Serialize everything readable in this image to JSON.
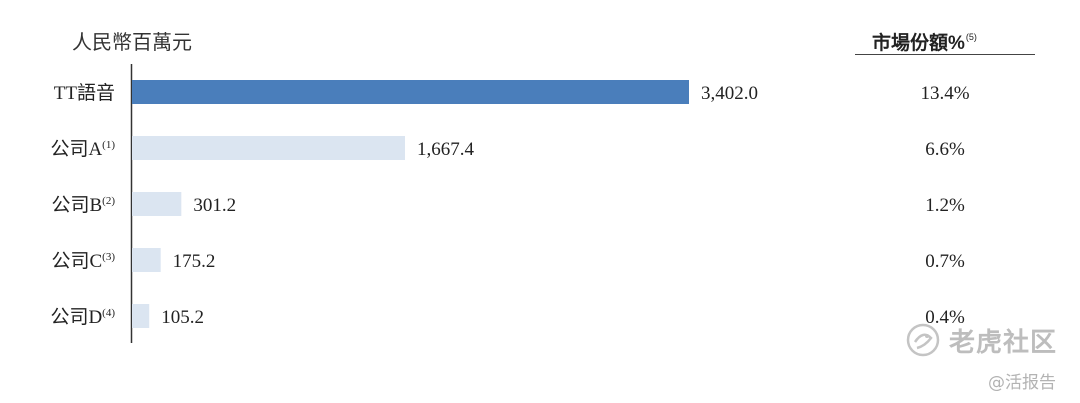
{
  "header": {
    "unit_label": "人民幣百萬元",
    "share_label": "市場份額%",
    "share_note": "(5)"
  },
  "chart_data": {
    "type": "bar",
    "orientation": "horizontal",
    "categories": [
      "TT語音",
      "公司A",
      "公司B",
      "公司C",
      "公司D"
    ],
    "category_notes": [
      "",
      "(1)",
      "(2)",
      "(3)",
      "(4)"
    ],
    "values": [
      3402.0,
      1667.4,
      301.2,
      175.2,
      105.2
    ],
    "value_labels": [
      "3,402.0",
      "1,667.4",
      "301.2",
      "175.2",
      "105.2"
    ],
    "market_share": [
      "13.4%",
      "6.6%",
      "1.2%",
      "0.7%",
      "0.4%"
    ],
    "highlight_color": "#4a7ebb",
    "bar_color": "#dbe5f1",
    "xlim": [
      0,
      3402.0
    ]
  },
  "watermark": {
    "brand": "老虎社区",
    "author": "@活报告"
  }
}
